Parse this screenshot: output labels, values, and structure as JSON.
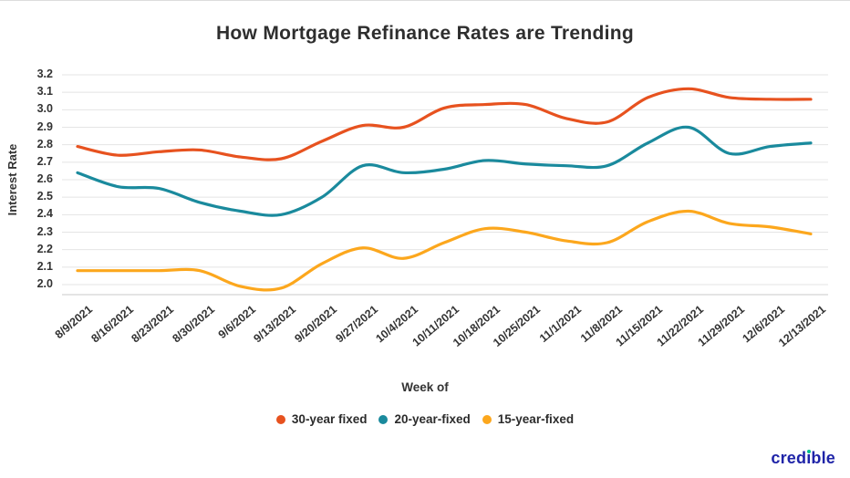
{
  "branding": {
    "logo_text": "credible",
    "logo_color": "#1F24A8",
    "logo_dot_color": "#00BF8C"
  },
  "colors": {
    "gridline": "#e4e4e4",
    "axis_line": "#c9c9c9",
    "text": "#333333",
    "series_30yr": "#E7521F",
    "series_20yr": "#1A8A9D",
    "series_15yr": "#FCA71D"
  },
  "chart_data": {
    "type": "line",
    "title": "How Mortgage Refinance Rates are Trending",
    "xlabel": "Week of",
    "ylabel": "Interest Rate",
    "ylim": [
      2.0,
      3.2
    ],
    "ytick_step": 0.1,
    "grid": true,
    "legend_position": "bottom",
    "yticks": [
      "3.2",
      "3.1",
      "3.0",
      "2.9",
      "2.8",
      "2.7",
      "2.6",
      "2.5",
      "2.4",
      "2.3",
      "2.2",
      "2.1",
      "2.0"
    ],
    "categories": [
      "8/9/2021",
      "8/16/2021",
      "8/23/2021",
      "8/30/2021",
      "9/6/2021",
      "9/13/2021",
      "9/20/2021",
      "9/27/2021",
      "10/4/2021",
      "10/11/2021",
      "10/18/2021",
      "10/25/2021",
      "11/1/2021",
      "11/8/2021",
      "11/15/2021",
      "11/22/2021",
      "11/29/2021",
      "12/6/2021",
      "12/13/2021"
    ],
    "series": [
      {
        "name": "30-year fixed",
        "color": "#E7521F",
        "values": [
          2.79,
          2.74,
          2.76,
          2.77,
          2.73,
          2.72,
          2.82,
          2.91,
          2.9,
          3.01,
          3.03,
          3.03,
          2.95,
          2.93,
          3.07,
          3.12,
          3.07,
          3.06,
          3.06
        ]
      },
      {
        "name": "20-year-fixed",
        "color": "#1A8A9D",
        "values": [
          2.64,
          2.56,
          2.55,
          2.47,
          2.42,
          2.4,
          2.5,
          2.68,
          2.64,
          2.66,
          2.71,
          2.69,
          2.68,
          2.68,
          2.81,
          2.9,
          2.75,
          2.79,
          2.81
        ]
      },
      {
        "name": "15-year-fixed",
        "color": "#FCA71D",
        "values": [
          2.08,
          2.08,
          2.08,
          2.08,
          1.99,
          1.98,
          2.12,
          2.21,
          2.15,
          2.24,
          2.32,
          2.3,
          2.25,
          2.24,
          2.36,
          2.42,
          2.35,
          2.33,
          2.29
        ]
      }
    ]
  }
}
